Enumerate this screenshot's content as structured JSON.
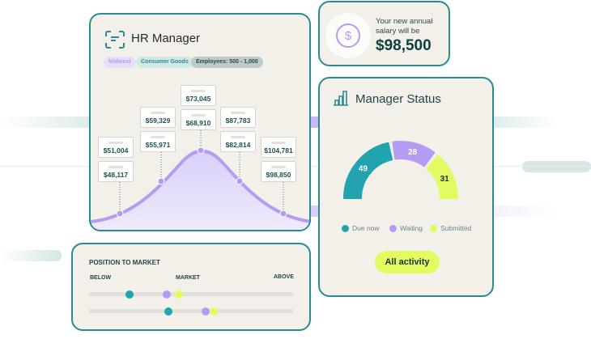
{
  "hr_card": {
    "title": "HR Manager",
    "icon": "document-scan-icon",
    "chips": [
      "Midwest",
      "Consumer Goods",
      "Employees: 500 - 1,000"
    ],
    "salary_labels": [
      {
        "top": "$51,004",
        "bottom": "$48,117"
      },
      {
        "top": "$59,329",
        "bottom": "$55,971"
      },
      {
        "top": "$73,045",
        "bottom": "$68,910"
      },
      {
        "top": "$87,783",
        "bottom": "$82,814"
      },
      {
        "top": "$104,781",
        "bottom": "$98,850"
      }
    ]
  },
  "salary_card": {
    "icon": "dollar-circle-icon",
    "text": "Your new annual salary will be",
    "amount": "$98,500"
  },
  "status_card": {
    "title": "Manager Status",
    "icon": "bar-chart-icon",
    "segments": [
      {
        "label": "Due now",
        "value": 49,
        "color": "#22a3b0"
      },
      {
        "label": "Waiting",
        "value": 28,
        "color": "#b59cf3"
      },
      {
        "label": "Submitted",
        "value": 31,
        "color": "#e2fb61"
      }
    ],
    "button": "All activity"
  },
  "position_card": {
    "title": "POSITION TO MARKET",
    "below": "BELOW",
    "market": "MARKET",
    "above": "ABOVE",
    "rows": [
      [
        0.2,
        0.38,
        0.44
      ],
      [
        0.39,
        0.57,
        0.61
      ]
    ],
    "dot_colors": [
      "#22a3b0",
      "#b59cf3",
      "#e2fb61"
    ]
  }
}
